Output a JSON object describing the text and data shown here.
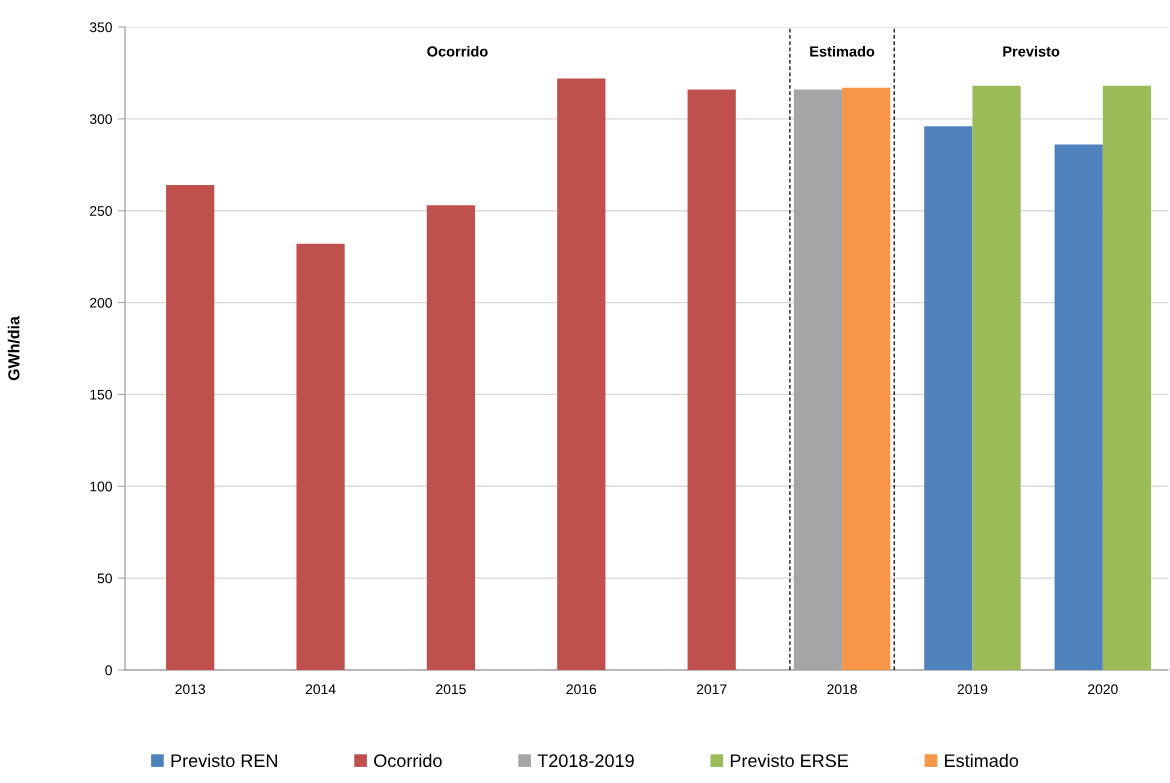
{
  "chart_data": {
    "type": "bar",
    "ylabel": "GWh/dia",
    "x": [
      2013,
      2014,
      2015,
      2016,
      2017,
      2018,
      2019,
      2020
    ],
    "series": [
      {
        "name": "Previsto REN",
        "color": "#4f81bd",
        "values": [
          null,
          null,
          null,
          null,
          null,
          null,
          296,
          286
        ]
      },
      {
        "name": "Ocorrido",
        "color": "#c0504d",
        "values": [
          264,
          232,
          253,
          322,
          316,
          null,
          null,
          null
        ]
      },
      {
        "name": "T2018-2019",
        "color": "#a5a5a5",
        "values": [
          null,
          null,
          null,
          null,
          null,
          316,
          null,
          null
        ]
      },
      {
        "name": "Previsto ERSE",
        "color": "#9bbb59",
        "values": [
          null,
          null,
          null,
          null,
          null,
          null,
          318,
          318
        ]
      },
      {
        "name": "Estimado",
        "color": "#f79646",
        "values": [
          null,
          null,
          null,
          null,
          null,
          317,
          null,
          null
        ]
      }
    ],
    "xlim": [
      2012.5,
      2020.5
    ],
    "xticks": [
      2013,
      2014,
      2015,
      2016,
      2017,
      2018,
      2019,
      2020
    ],
    "ylim": [
      0,
      350
    ],
    "yticks": [
      0,
      50,
      100,
      150,
      200,
      250,
      300,
      350
    ],
    "grid": "y",
    "legend": "bottom",
    "ref_lines": [
      {
        "axis": "x",
        "value": 2017.6,
        "color": "#000000",
        "line_style": "dashed"
      },
      {
        "axis": "x",
        "value": 2018.4,
        "color": "#000000",
        "line_style": "dashed"
      }
    ],
    "annotations": [
      "Ocorrido",
      "Estimado",
      "Previsto"
    ]
  }
}
